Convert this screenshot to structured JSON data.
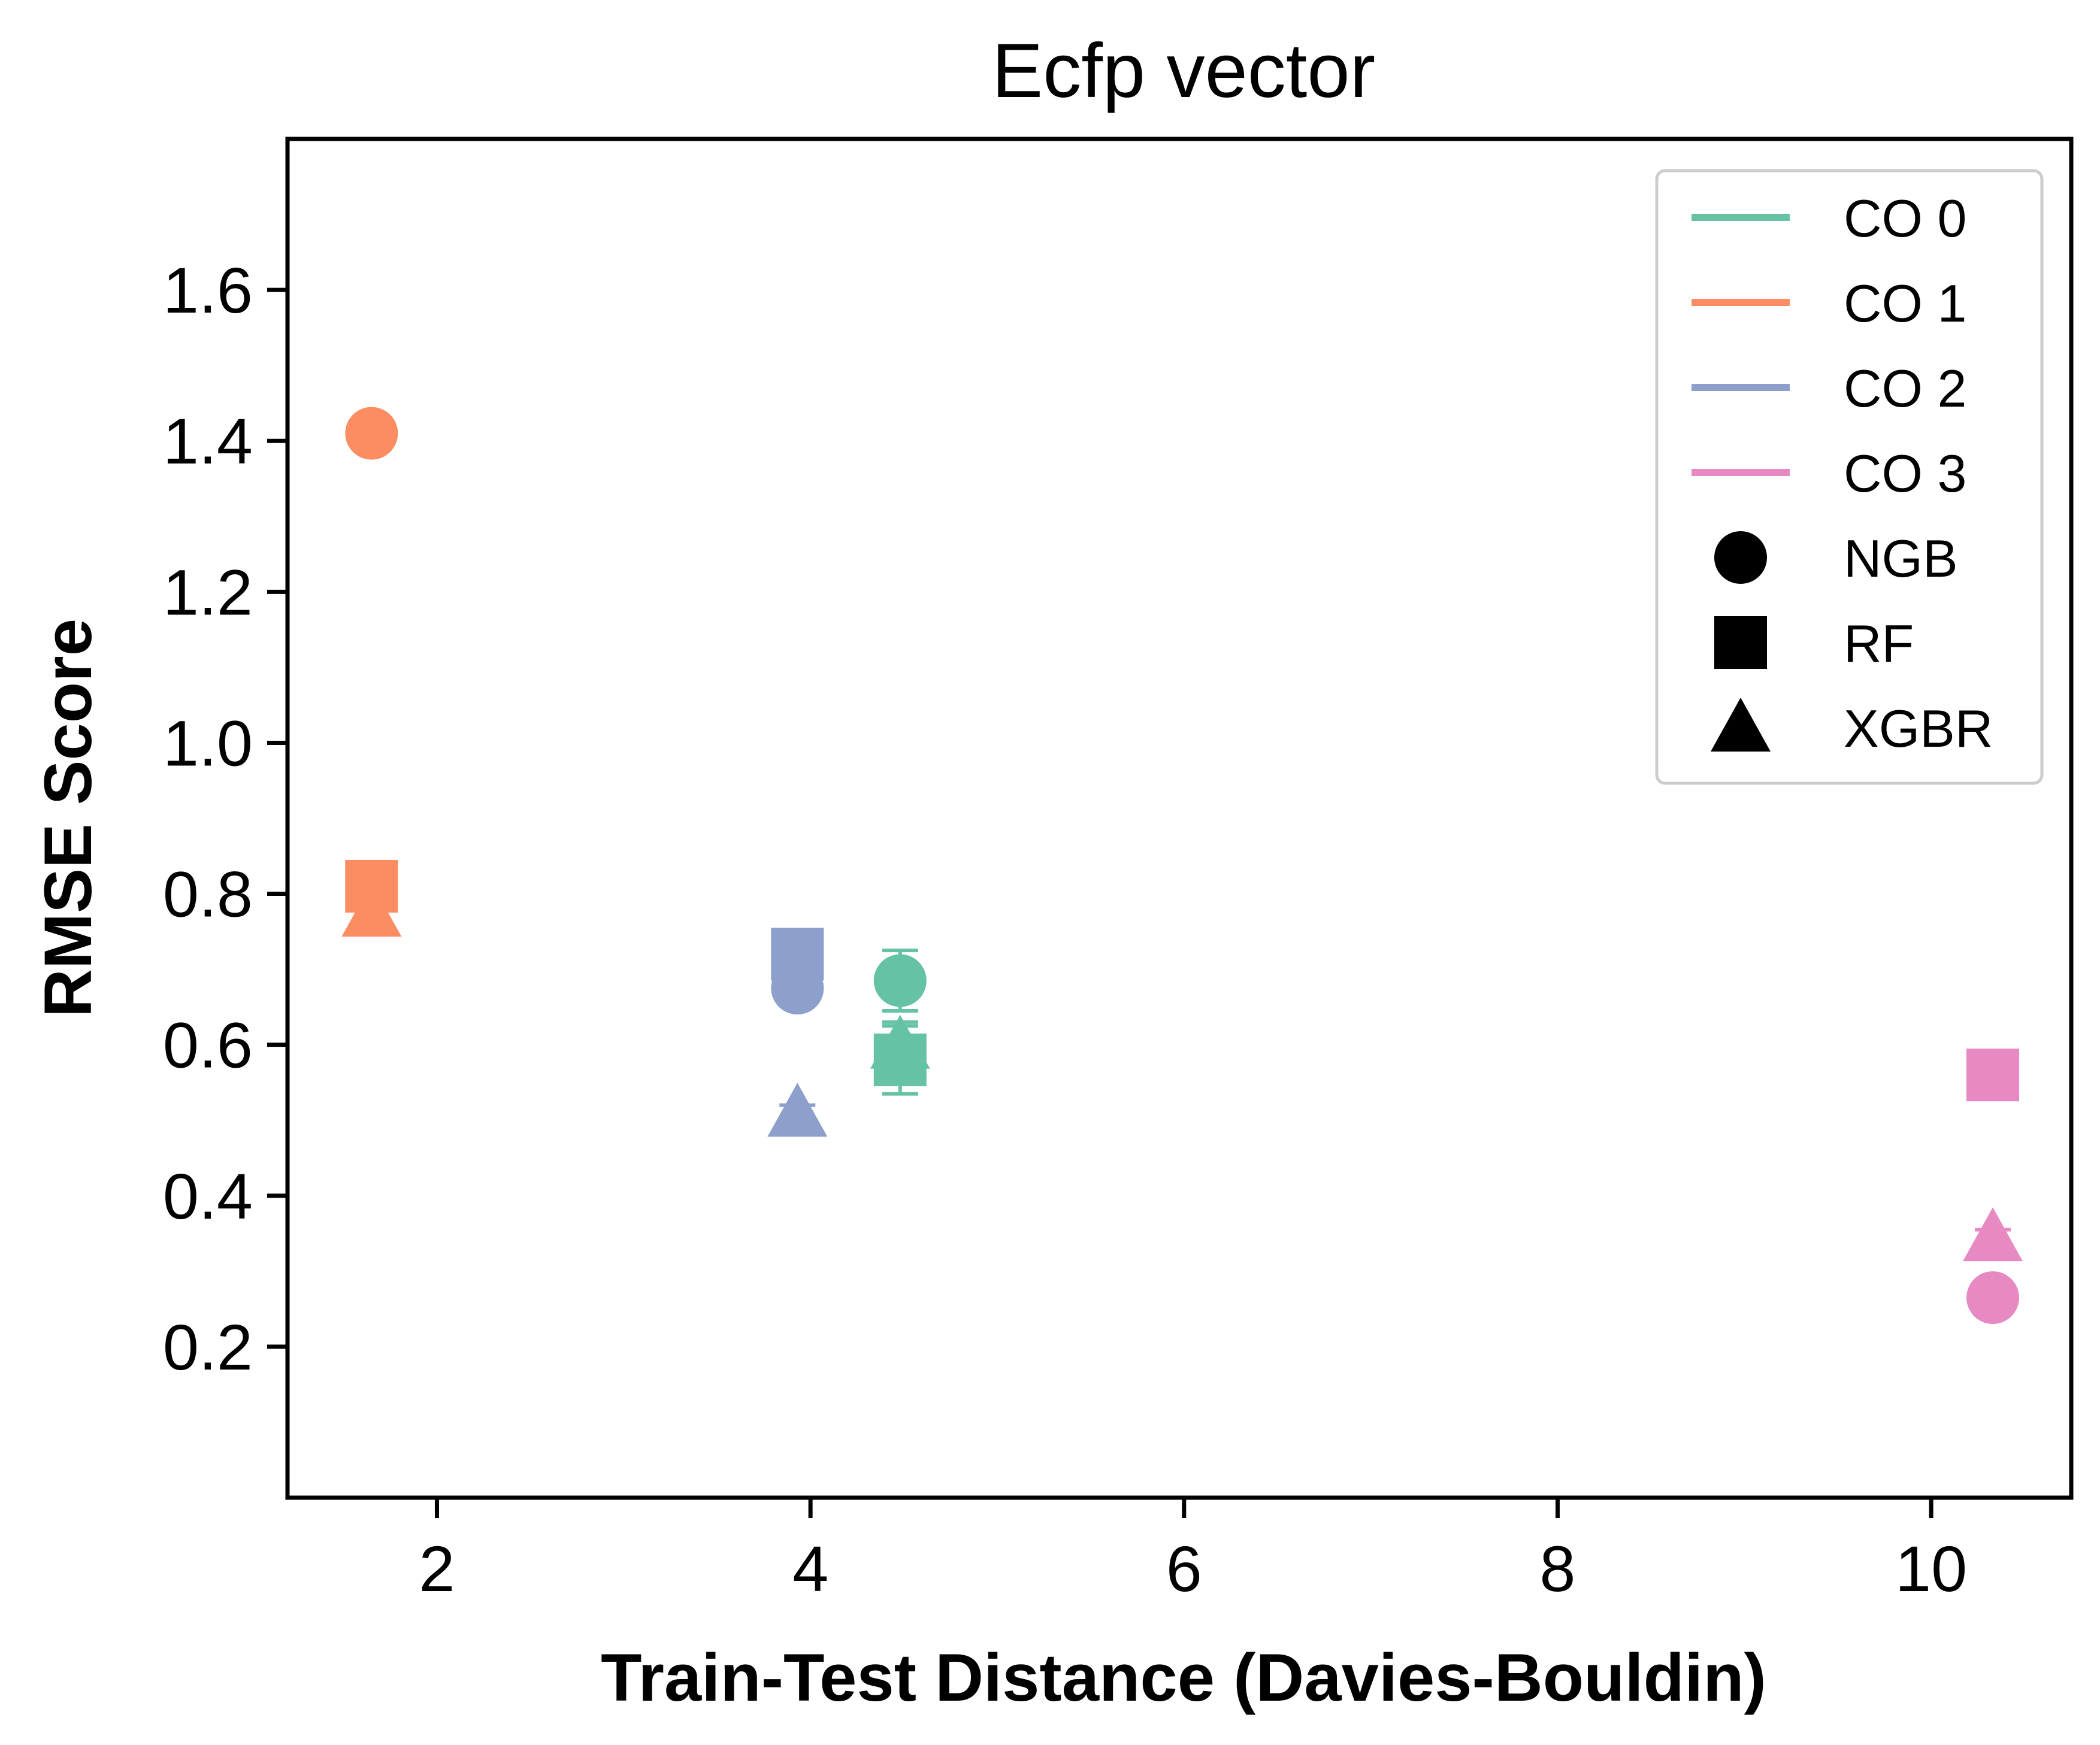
{
  "chart_data": {
    "type": "scatter",
    "title": "Ecfp vector",
    "xlabel": "Train-Test Distance (Davies-Bouldin)",
    "ylabel": "RMSE Score",
    "xlim": [
      1.2,
      10.75
    ],
    "ylim": [
      0.0,
      1.8
    ],
    "xticks": [
      2,
      4,
      6,
      8,
      10
    ],
    "yticks": [
      0.2,
      0.4,
      0.6,
      0.8,
      1.0,
      1.2,
      1.4,
      1.6
    ],
    "x_tick_labels": [
      "2",
      "4",
      "6",
      "8",
      "10"
    ],
    "y_tick_labels": [
      "0.2",
      "0.4",
      "0.6",
      "0.8",
      "1.0",
      "1.2",
      "1.4",
      "1.6"
    ],
    "grid": false,
    "legend_position": "top-right",
    "legend": [
      {
        "label": "CO 0",
        "kind": "line",
        "color": "#66c2a5"
      },
      {
        "label": "CO 1",
        "kind": "line",
        "color": "#fc8d62"
      },
      {
        "label": "CO 2",
        "kind": "line",
        "color": "#8da0cb"
      },
      {
        "label": "CO 3",
        "kind": "line",
        "color": "#e78ac3"
      },
      {
        "label": "NGB",
        "kind": "circle",
        "color": "#000000"
      },
      {
        "label": "RF",
        "kind": "square",
        "color": "#000000"
      },
      {
        "label": "XGBR",
        "kind": "triangle",
        "color": "#000000"
      }
    ],
    "series": [
      {
        "group": "CO 0",
        "color": "#66c2a5",
        "points": [
          {
            "model": "NGB",
            "x": 4.48,
            "y": 0.685,
            "err": 0.04
          },
          {
            "model": "RF",
            "x": 4.48,
            "y": 0.58,
            "err": 0.045
          },
          {
            "model": "XGBR",
            "x": 4.48,
            "y": 0.6,
            "err": 0.03
          }
        ]
      },
      {
        "group": "CO 1",
        "color": "#fc8d62",
        "points": [
          {
            "model": "NGB",
            "x": 1.65,
            "y": 1.41,
            "err": 0.02
          },
          {
            "model": "RF",
            "x": 1.65,
            "y": 0.81,
            "err": 0.01
          },
          {
            "model": "XGBR",
            "x": 1.65,
            "y": 0.775,
            "err": 0.01
          }
        ]
      },
      {
        "group": "CO 2",
        "color": "#8da0cb",
        "points": [
          {
            "model": "NGB",
            "x": 3.93,
            "y": 0.675,
            "err": 0.02
          },
          {
            "model": "RF",
            "x": 3.93,
            "y": 0.72,
            "err": 0.02
          },
          {
            "model": "XGBR",
            "x": 3.93,
            "y": 0.51,
            "err": 0.01
          }
        ]
      },
      {
        "group": "CO 3",
        "color": "#e78ac3",
        "points": [
          {
            "model": "NGB",
            "x": 10.33,
            "y": 0.265,
            "err": 0.01
          },
          {
            "model": "RF",
            "x": 10.33,
            "y": 0.56,
            "err": 0.01
          },
          {
            "model": "XGBR",
            "x": 10.33,
            "y": 0.345,
            "err": 0.01
          }
        ]
      }
    ]
  }
}
